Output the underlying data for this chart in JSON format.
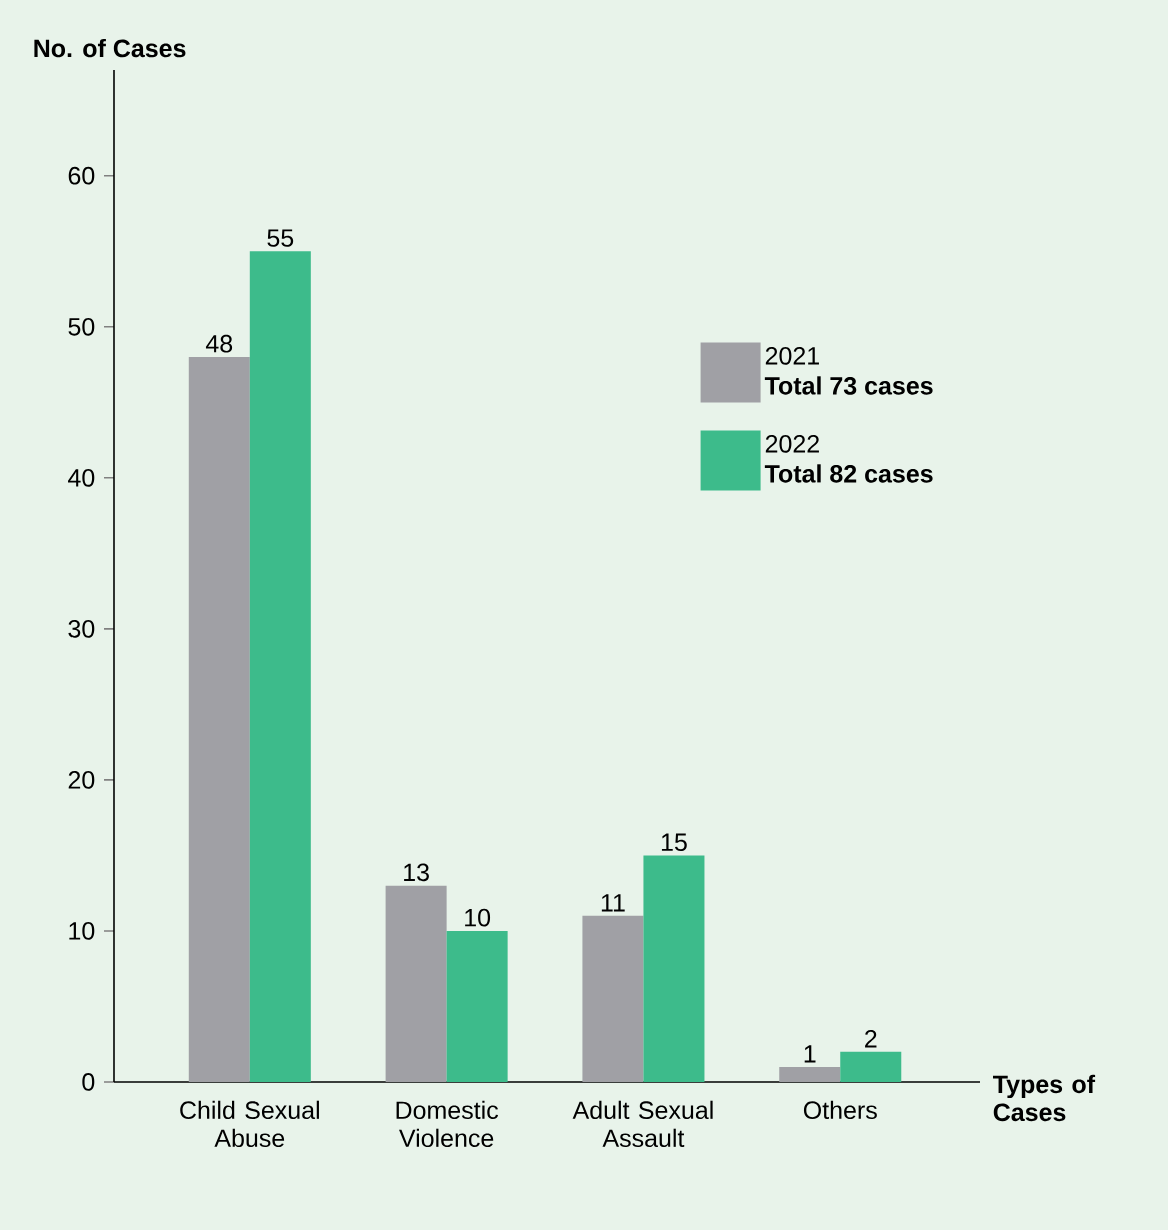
{
  "chart_data": {
    "type": "bar",
    "xlabel": "Types of Cases",
    "ylabel": "No. of Cases",
    "categories": [
      "Child Sexual Abuse",
      "Domestic Violence",
      "Adult Sexual Assault",
      "Others"
    ],
    "series": [
      {
        "name": "2021",
        "color": "#a0a0a5",
        "values": [
          48,
          13,
          11,
          1
        ]
      },
      {
        "name": "2022",
        "color": "#3dbb8b",
        "values": [
          55,
          10,
          15,
          2
        ]
      }
    ],
    "annotations": [
      "Total 73 cases",
      "Total 82 cases"
    ],
    "ylim": [
      0,
      67
    ],
    "yticks": [
      0,
      10,
      20,
      30,
      40,
      50,
      60
    ],
    "data_labels": true,
    "legend": "top right",
    "grid": false
  }
}
